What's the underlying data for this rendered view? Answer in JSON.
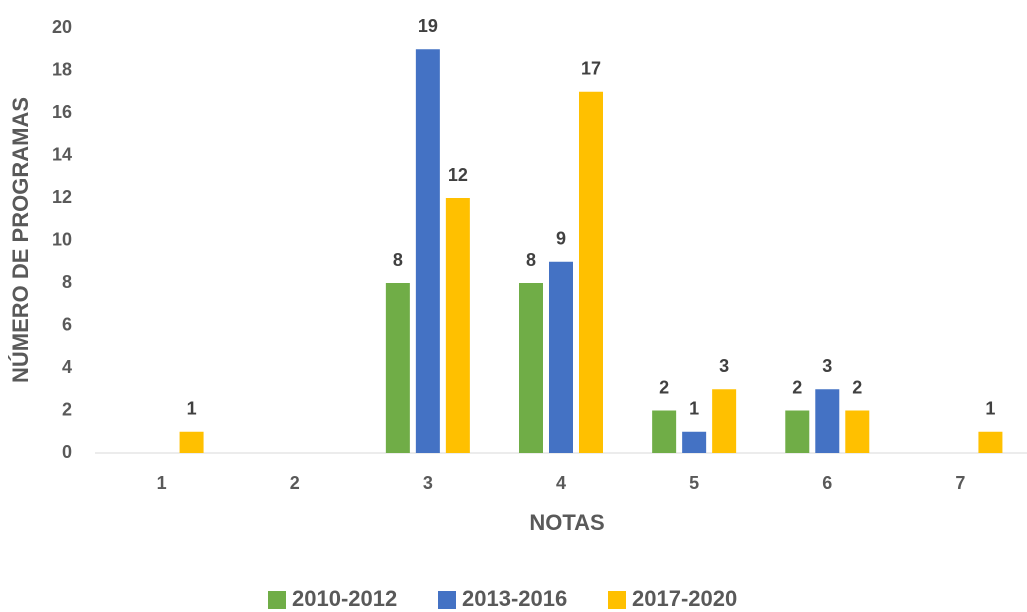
{
  "chart_data": {
    "type": "bar",
    "categories": [
      "1",
      "2",
      "3",
      "4",
      "5",
      "6",
      "7"
    ],
    "series": [
      {
        "name": "2010-2012",
        "color": "#70ad47",
        "values": [
          null,
          null,
          8,
          8,
          2,
          2,
          null
        ]
      },
      {
        "name": "2013-2016",
        "color": "#4472c4",
        "values": [
          null,
          null,
          19,
          9,
          1,
          3,
          null
        ]
      },
      {
        "name": "2017-2020",
        "color": "#ffc000",
        "values": [
          1,
          null,
          12,
          17,
          3,
          2,
          1
        ]
      }
    ],
    "x_label": "NOTAS",
    "y_label": "NÚMERO DE PROGRAMAS",
    "ylim": [
      0,
      20
    ],
    "yticks": [
      0,
      2,
      4,
      6,
      8,
      10,
      12,
      14,
      16,
      18,
      20
    ],
    "grid": false,
    "legend": "bottom"
  }
}
